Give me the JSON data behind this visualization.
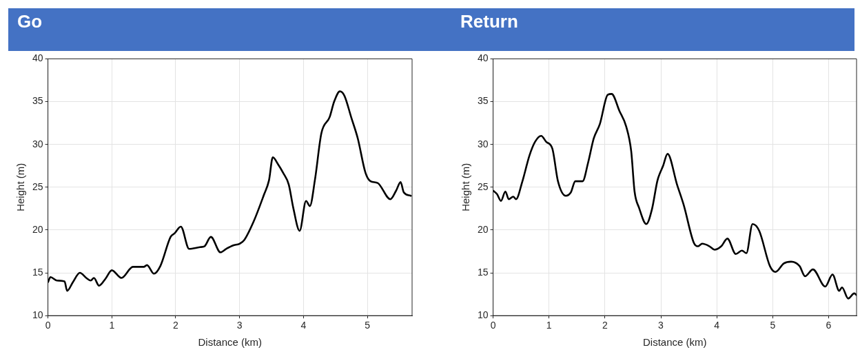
{
  "chart_data": [
    {
      "type": "line",
      "title": "Go",
      "xlabel": "Distance (km)",
      "ylabel": "Height (m)",
      "xlim": [
        0,
        5.7
      ],
      "xticks": [
        0,
        1,
        2,
        3,
        4,
        5
      ],
      "ylim": [
        10,
        40
      ],
      "yticks": [
        10,
        15,
        20,
        25,
        30,
        35,
        40
      ],
      "grid": true,
      "marker": "none",
      "line_style": "solid",
      "series": [
        {
          "color": "#000000",
          "x": [
            0,
            0.04,
            0.14,
            0.26,
            0.3,
            0.39,
            0.5,
            0.6,
            0.67,
            0.72,
            0.8,
            0.9,
            1.0,
            1.15,
            1.33,
            1.5,
            1.55,
            1.66,
            1.76,
            1.92,
            1.98,
            2.08,
            2.21,
            2.38,
            2.45,
            2.55,
            2.7,
            2.79,
            2.9,
            3.0,
            3.07,
            3.22,
            3.38,
            3.46,
            3.52,
            3.6,
            3.68,
            3.77,
            3.84,
            3.94,
            4.04,
            4.1,
            4.18,
            4.28,
            4.41,
            4.48,
            4.57,
            4.64,
            4.75,
            4.85,
            4.97,
            5.05,
            5.16,
            5.36,
            5.45,
            5.52,
            5.57,
            5.68
          ],
          "values": [
            13.9,
            14.5,
            14.1,
            14.0,
            12.9,
            13.9,
            15.0,
            14.4,
            14.1,
            14.4,
            13.5,
            14.3,
            15.3,
            14.4,
            15.7,
            15.7,
            15.9,
            14.9,
            15.8,
            19.2,
            19.6,
            20.4,
            17.8,
            18.0,
            18.1,
            19.2,
            17.4,
            17.8,
            18.2,
            18.4,
            18.8,
            21.0,
            24.1,
            25.8,
            28.5,
            27.7,
            26.7,
            25.3,
            22.6,
            19.9,
            23.4,
            22.8,
            25.9,
            31.3,
            33.2,
            35.0,
            36.2,
            35.7,
            33.1,
            30.7,
            26.7,
            25.7,
            25.5,
            23.6,
            24.6,
            25.6,
            24.4,
            24.0
          ]
        }
      ]
    },
    {
      "type": "line",
      "title": "Return",
      "xlabel": "Distance (km)",
      "ylabel": "Height (m)",
      "xlim": [
        0,
        6.5
      ],
      "xticks": [
        0,
        1,
        2,
        3,
        4,
        5,
        6
      ],
      "ylim": [
        10,
        40
      ],
      "yticks": [
        10,
        15,
        20,
        25,
        30,
        35,
        40
      ],
      "grid": true,
      "marker": "none",
      "line_style": "solid",
      "series": [
        {
          "color": "#000000",
          "x": [
            0,
            0.07,
            0.14,
            0.22,
            0.28,
            0.36,
            0.41,
            0.52,
            0.65,
            0.75,
            0.86,
            0.95,
            1.06,
            1.16,
            1.3,
            1.39,
            1.47,
            1.6,
            1.7,
            1.8,
            1.91,
            2.05,
            2.12,
            2.26,
            2.38,
            2.47,
            2.53,
            2.61,
            2.74,
            2.84,
            2.94,
            3.04,
            3.12,
            3.29,
            3.41,
            3.59,
            3.66,
            3.74,
            3.87,
            3.96,
            4.08,
            4.19,
            4.34,
            4.45,
            4.53,
            4.64,
            4.76,
            4.95,
            5.05,
            5.2,
            5.33,
            5.48,
            5.58,
            5.72,
            5.94,
            6.07,
            6.19,
            6.24,
            6.35,
            6.46,
            6.5
          ],
          "values": [
            24.6,
            24.2,
            23.4,
            24.5,
            23.6,
            23.9,
            23.6,
            25.6,
            28.7,
            30.3,
            31.0,
            30.3,
            29.5,
            25.7,
            24.0,
            24.4,
            25.7,
            25.7,
            27.9,
            30.7,
            32.4,
            35.8,
            35.9,
            33.9,
            32.1,
            29.2,
            24.5,
            22.6,
            20.7,
            22.4,
            25.8,
            27.5,
            28.9,
            25.3,
            22.9,
            18.5,
            18.1,
            18.4,
            18.1,
            17.7,
            18.1,
            19.0,
            17.2,
            17.6,
            17.3,
            20.7,
            19.9,
            15.8,
            15.1,
            16.1,
            16.3,
            15.8,
            14.6,
            15.4,
            13.4,
            14.8,
            12.9,
            13.3,
            12.0,
            12.6,
            12.4
          ]
        }
      ]
    }
  ]
}
